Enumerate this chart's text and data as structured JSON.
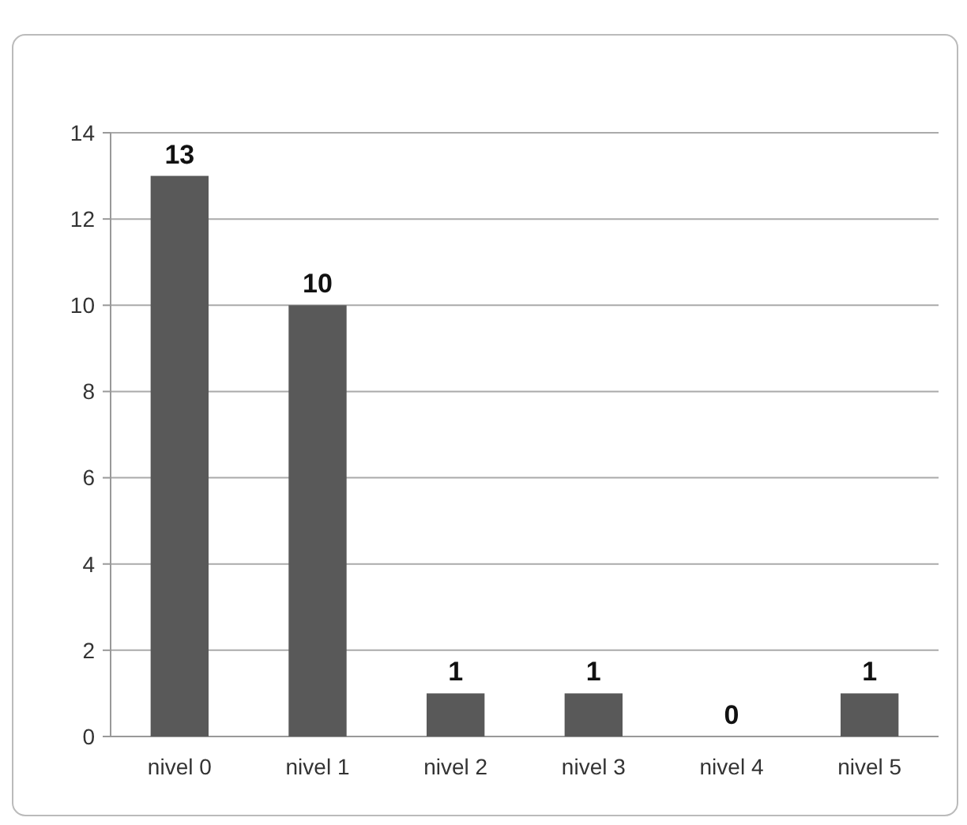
{
  "chart_data": {
    "type": "bar",
    "categories": [
      "nivel 0",
      "nivel 1",
      "nivel 2",
      "nivel 3",
      "nivel 4",
      "nivel 5"
    ],
    "values": [
      13,
      10,
      1,
      1,
      0,
      1
    ],
    "color": "#595959",
    "ylim": [
      0,
      14
    ],
    "yticks": [
      0,
      2,
      4,
      6,
      8,
      10,
      12,
      14
    ],
    "grid": "y",
    "data_labels": true
  }
}
